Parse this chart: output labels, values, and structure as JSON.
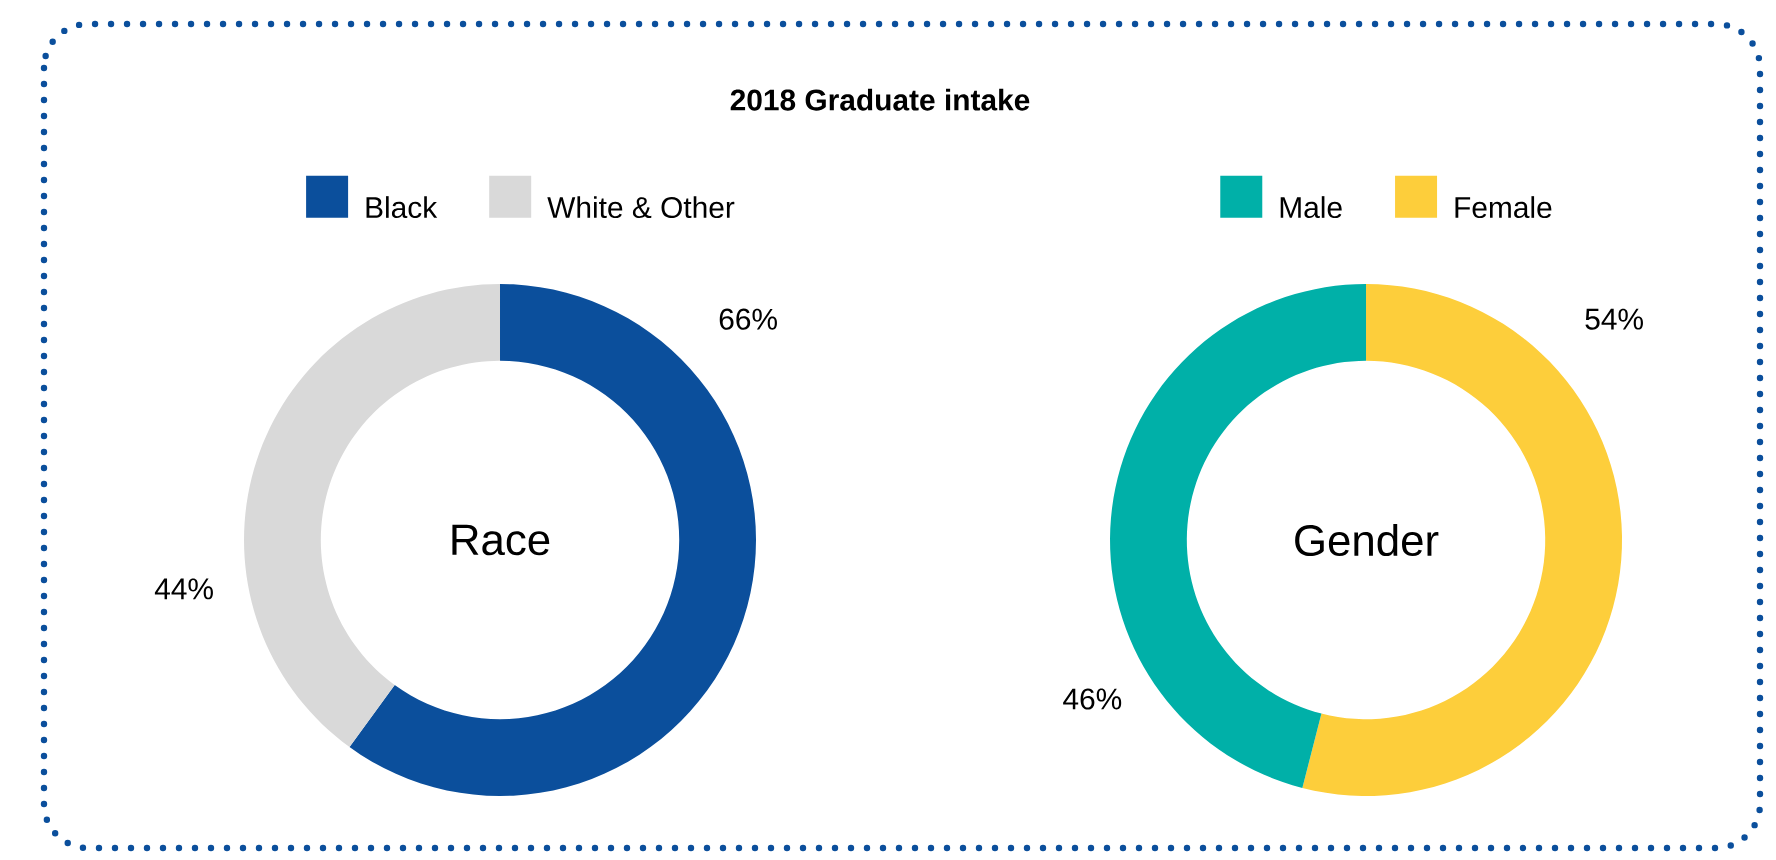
{
  "chart_data": [
    {
      "type": "donut",
      "title": "2018 Graduate intake",
      "annotations": [
        "Race"
      ],
      "categories": [
        "Black",
        "White & Other"
      ],
      "values": [
        66,
        44
      ],
      "value_labels": [
        "66%",
        "44%"
      ],
      "colors": [
        "#0b4f9c",
        "#d9d9d9"
      ],
      "legend": "top"
    },
    {
      "type": "donut",
      "annotations": [
        "Gender"
      ],
      "categories": [
        "Male",
        "Female"
      ],
      "values": [
        46,
        54
      ],
      "value_labels": [
        "46%",
        "54%"
      ],
      "colors": [
        "#00b0a8",
        "#fdce3b"
      ],
      "legend": "top"
    }
  ]
}
